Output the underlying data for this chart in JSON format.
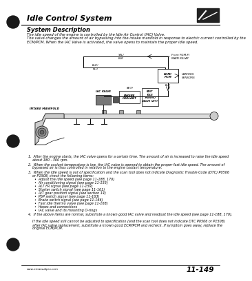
{
  "title": "Idle Control System",
  "subtitle": "System Description",
  "bg_color": "#f0ede8",
  "page_bg": "#ffffff",
  "page_num": "11-149",
  "intro_text": "The idle speed of the engine is controlled by the Idle Air Control (IAC) Valve.\nThe valve changes the amount of air bypassing into the intake manifold in response to electric current controlled by the\nECM/PCM. When the IAC Valve is activated, the valve opens to maintain the proper idle speed.",
  "bullet_items": [
    "1.  After the engine starts, the IAC valve opens for a certain time. The amount of air is increased to raise the idle speed\n    about 180 - 300 rpm.",
    "2.  When the coolant temperature is low, the IAC valve is opened to obtain the proper fast idle speed. The amount of\n    bypassed air is thus controlled in relation to the engine coolant temperature.",
    "3.  When the idle speed is out of specification and the scan tool does not indicate Diagnostic Trouble Code (DTC) P0506\n    or P1508, check the following items:\n      •  Adjust the idle speed (see page 11-188, 170)\n      •  Air conditioning signal (see page 11-155)\n      •  ALT FR signal (see page 11-159)\n      •  Starter switch signal (see page 11-161)\n      •  A/T gear position signal (see section 14)\n      •  PSP switch signal (see page 11-163)\n      •  Brake switch signal (see page 11-166)\n      •  Fast idle thermo valve (see page 11-168)\n      •  Hoses and connections\n      •  IAC valve and its mounting O-rings",
    "4.  If the above items are normal, substitute a known good IAC valve and readjust the idle speed (see page 11-188, 170).\n\n    If the idle speed still cannot be adjusted to specification (and the scan tool does not indicate DTC P0506 or P1508)\n    after IAC valve replacement, substitute a known good ECM/PCM and recheck. If symptom goes away, replace the\n    original ECM/PCM."
  ],
  "footer_url": "www.emanualpro.com"
}
